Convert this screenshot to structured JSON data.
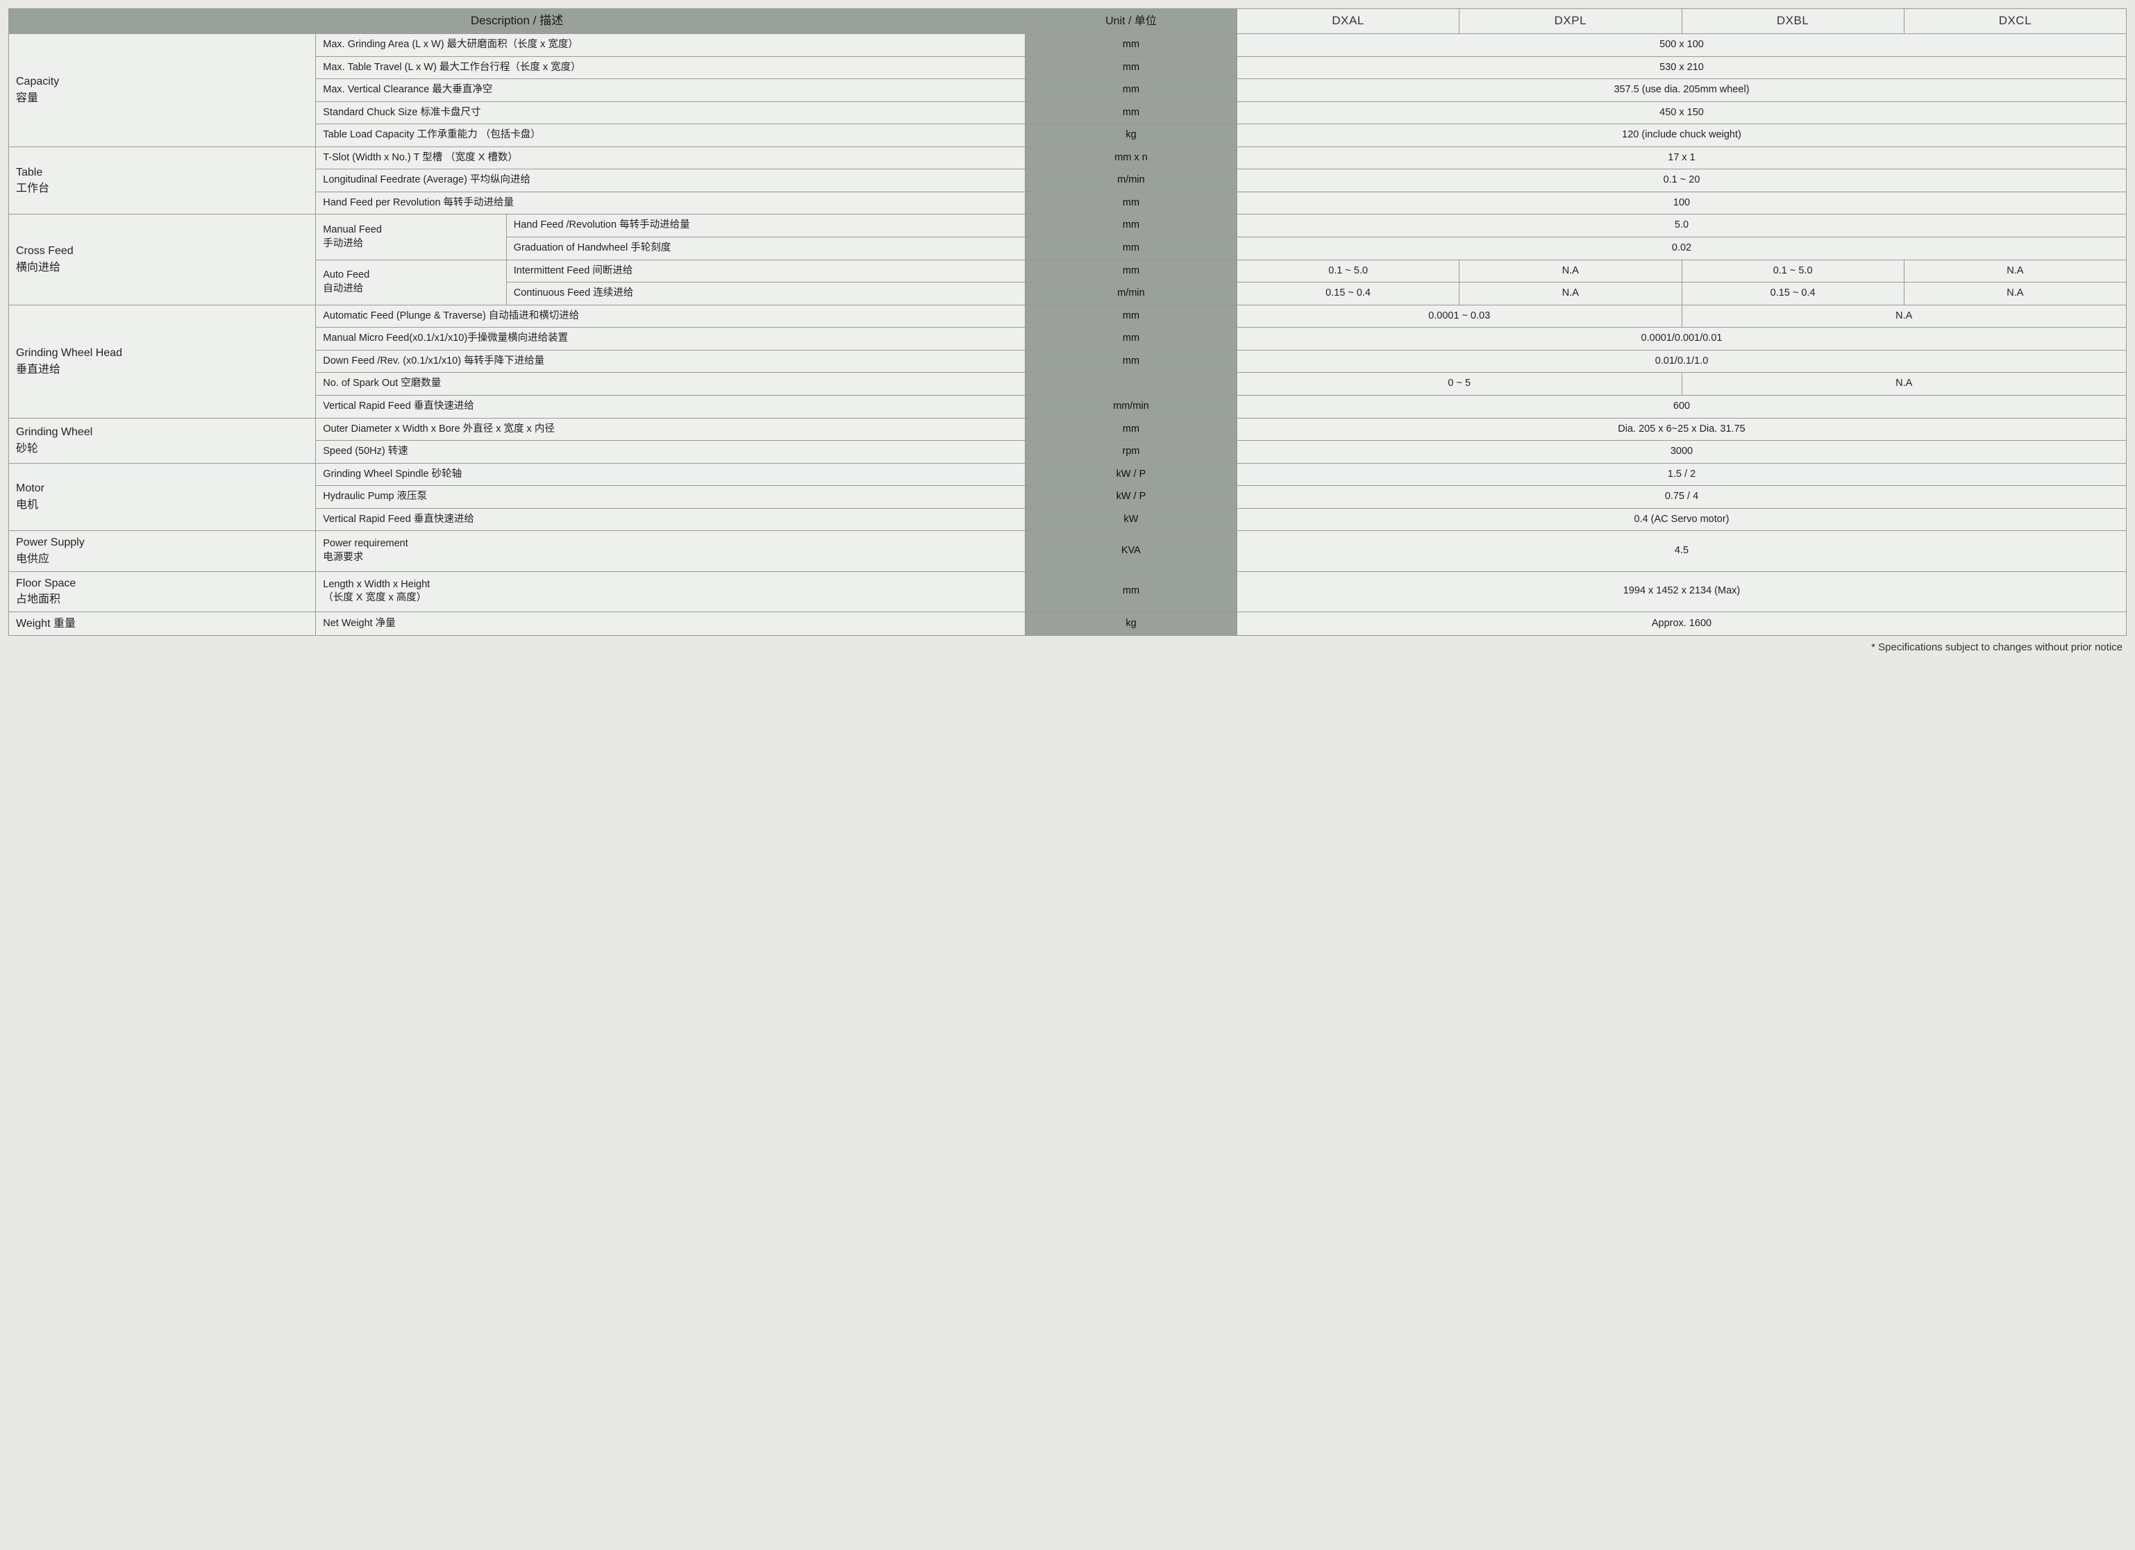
{
  "header": {
    "description": "Description /  描述",
    "unit": "Unit /   单位",
    "models": [
      "DXAL",
      "DXPL",
      "DXBL",
      "DXCL"
    ]
  },
  "categories": {
    "capacity": {
      "en": "Capacity",
      "zh": "容量"
    },
    "table": {
      "en": "Table",
      "zh": "工作台"
    },
    "cross": {
      "en": "Cross Feed",
      "zh": "横向进给"
    },
    "gwh": {
      "en": "Grinding Wheel Head",
      "zh": "垂直进给"
    },
    "gw": {
      "en": "Grinding Wheel",
      "zh": "砂轮"
    },
    "motor": {
      "en": "Motor",
      "zh": "电机"
    },
    "power": {
      "en": "Power Supply",
      "zh": "电供应"
    },
    "floor": {
      "en": "Floor Space",
      "zh": "占地面积"
    },
    "weight": {
      "en": "Weight  重量"
    }
  },
  "sub": {
    "manual": {
      "en": "Manual Feed",
      "zh": "手动进给"
    },
    "auto": {
      "en": "Auto Feed",
      "zh": "自动进给"
    }
  },
  "rows": {
    "cap1": {
      "desc": "Max. Grinding Area (L x W) 最大研磨面积（长度 x 宽度）",
      "unit": "mm",
      "val": "500 x 100"
    },
    "cap2": {
      "desc": "Max. Table Travel (L x W) 最大工作台行程（长度  x  宽度）",
      "unit": "mm",
      "val": "530 x 210"
    },
    "cap3": {
      "desc": "Max. Vertical Clearance   最大垂直净空",
      "unit": "mm",
      "val": "357.5 (use dia. 205mm wheel)"
    },
    "cap4": {
      "desc": "Standard Chuck Size   标准卡盘尺寸",
      "unit": "mm",
      "val": "450 x 150"
    },
    "cap5": {
      "desc": "Table Load Capacity  工作承重能力  （包括卡盘）",
      "unit": "kg",
      "val": "120 (include chuck weight)"
    },
    "tab1": {
      "desc": "T-Slot (Width x No.)   T 型槽  （宽度 X 槽数）",
      "unit": "mm x n",
      "val": "17 x 1"
    },
    "tab2": {
      "desc": "Longitudinal Feedrate (Average)   平均纵向进给",
      "unit": "m/min",
      "val": "0.1 ~ 20"
    },
    "tab3": {
      "desc": "Hand Feed per Revolution   每转手动进给量",
      "unit": "mm",
      "val": "100"
    },
    "cf1": {
      "desc": "Hand Feed /Revolution   每转手动进给量",
      "unit": "mm",
      "val": "5.0"
    },
    "cf2": {
      "desc": "Graduation of Handwheel   手轮刻度",
      "unit": "mm",
      "val": "0.02"
    },
    "cf3": {
      "desc": "Intermittent Feed   间断进给",
      "unit": "mm",
      "v1": "0.1 ~ 5.0",
      "v2": "N.A",
      "v3": "0.1 ~ 5.0",
      "v4": "N.A"
    },
    "cf4": {
      "desc": "Continuous Feed   连续进给",
      "unit": "m/min",
      "v1": "0.15 ~ 0.4",
      "v2": "N.A",
      "v3": "0.15 ~ 0.4",
      "v4": "N.A"
    },
    "gwh1": {
      "desc": "Automatic Feed (Plunge & Traverse) 自动插进和横切进给",
      "unit": "mm",
      "vL": "0.0001 ~ 0.03",
      "vR": "N.A"
    },
    "gwh2": {
      "desc": "Manual Micro Feed(x0.1/x1/x10)手操微量横向进给装置",
      "unit": "mm",
      "val": "0.0001/0.001/0.01"
    },
    "gwh3": {
      "desc": "Down Feed /Rev. (x0.1/x1/x10)   每转手降下进给量",
      "unit": "mm",
      "val": "0.01/0.1/1.0"
    },
    "gwh4": {
      "desc": "No. of Spark Out   空磨数量",
      "unit": "",
      "vL": "0 ~ 5",
      "vR": "N.A"
    },
    "gwh5": {
      "desc": "Vertical Rapid Feed   垂直快速进给",
      "unit": "mm/min",
      "val": "600"
    },
    "gw1": {
      "desc": "Outer Diameter x Width x Bore   外直径 x 宽度 x 内径",
      "unit": "mm",
      "val": "Dia. 205 x 6~25 x Dia. 31.75"
    },
    "gw2": {
      "desc": "Speed (50Hz)   转速",
      "unit": "rpm",
      "val": "3000"
    },
    "mt1": {
      "desc": "Grinding Wheel Spindle   砂轮轴",
      "unit": "kW / P",
      "val": "1.5 / 2"
    },
    "mt2": {
      "desc": "Hydraulic Pump   液压泵",
      "unit": "kW / P",
      "val": "0.75 / 4"
    },
    "mt3": {
      "desc": "Vertical Rapid Feed   垂直快速进给",
      "unit": "kW",
      "val": "0.4 (AC Servo motor)"
    },
    "pw1": {
      "desc_en": "Power requirement",
      "desc_zh": "电源要求",
      "unit": "KVA",
      "val": "4.5"
    },
    "fl1": {
      "desc_en": "Length x Width x Height",
      "desc_zh": "（长度 X 宽度 x 高度）",
      "unit": "mm",
      "val": "1994 x 1452 x 2134 (Max)"
    },
    "wt1": {
      "desc": "Net Weight   净量",
      "unit": "kg",
      "val": "Approx. 1600"
    }
  },
  "footnote": "*  Specifications subject to changes without prior notice"
}
